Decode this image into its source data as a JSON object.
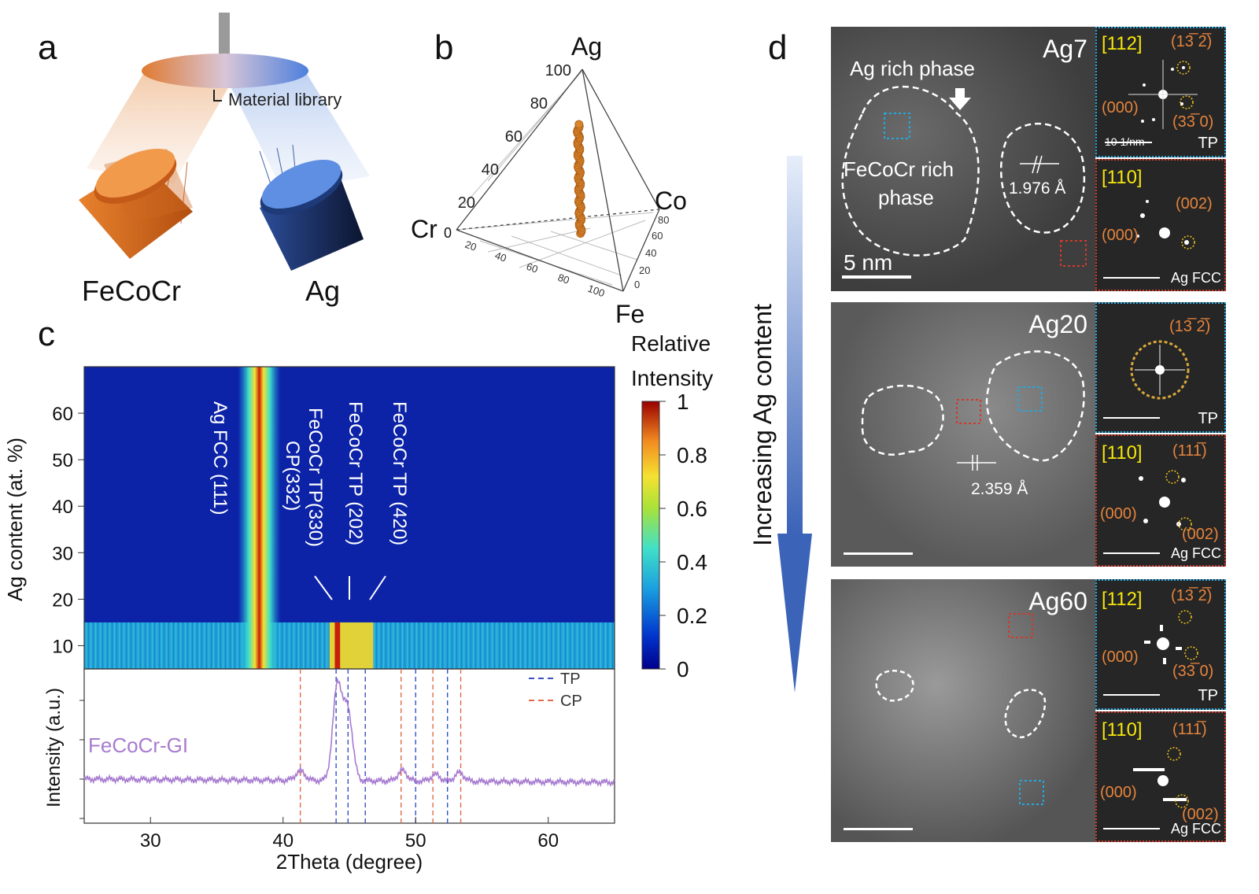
{
  "panels": {
    "a": {
      "letter": "a",
      "library_label": "Material library",
      "targets": [
        "FeCoCr",
        "Ag"
      ]
    },
    "b": {
      "letter": "b",
      "vertices": {
        "top": "Ag",
        "left": "Cr",
        "left_zero": "0",
        "right": "Co",
        "bottom": "Fe"
      },
      "ag_ticks": [
        "100",
        "80",
        "60",
        "40",
        "20"
      ],
      "cr_ticks": [
        "20",
        "40",
        "60",
        "80",
        "100"
      ],
      "fe_ticks": [
        "100",
        "80",
        "60",
        "40",
        "20",
        "0"
      ],
      "co_ticks": [
        "100",
        "80",
        "60",
        "40",
        "20"
      ]
    },
    "c": {
      "letter": "c",
      "colorbar": {
        "title_line1": "Relative",
        "title_line2": "Intensity",
        "ticks": [
          "1",
          "0.8",
          "0.6",
          "0.4",
          "0.2",
          "0"
        ]
      },
      "peak_labels": [
        "Ag FCC  (111)",
        "FeCoCr TP(330)",
        "CP(332)",
        "FeCoCr TP  (202)",
        "FeCoCr TP  (420)"
      ],
      "legend": [
        "TP",
        "CP"
      ],
      "trace_label": "FeCoCr-GI"
    },
    "d": {
      "letter": "d",
      "side_label": "Increasing Ag content",
      "rows": [
        {
          "sample": "Ag7",
          "ag_rich": "Ag rich phase",
          "fecocr_rich_1": "FeCoCr rich",
          "fecocr_rich_2": "phase",
          "d_spacing": "1.976 Å",
          "scale": "5 nm",
          "fft_top": {
            "zone": "[112]",
            "spots": [
              "(13̅ 2̅)",
              "(000)",
              "(33̅ 0)"
            ],
            "scale": "10 1/nm",
            "phase": "TP"
          },
          "fft_bottom": {
            "zone": "[110]",
            "spots": [
              "(002)",
              "(000)"
            ],
            "phase": "Ag FCC"
          }
        },
        {
          "sample": "Ag20",
          "d_spacing": "2.359 Å",
          "fft_top": {
            "spots": [
              "(13̅ 2̅)"
            ],
            "phase": "TP"
          },
          "fft_bottom": {
            "zone": "[110]",
            "spots": [
              "(111̅)",
              "(000)",
              "(002)"
            ],
            "phase": "Ag FCC"
          }
        },
        {
          "sample": "Ag60",
          "fft_top": {
            "zone": "[112]",
            "spots": [
              "(13̅ 2̅)",
              "(000)",
              "(33̅ 0)"
            ],
            "phase": "TP"
          },
          "fft_bottom": {
            "zone": "[110]",
            "spots": [
              "(111̅)",
              "(000)",
              "(002)"
            ],
            "phase": "Ag FCC"
          }
        }
      ]
    }
  },
  "colors": {
    "heat_bg": "#0c23a8",
    "heat_stripe": "#c81e0c",
    "trace": "#a77bd0",
    "tp_line": "#3a4fc0",
    "cp_line": "#e06a4a",
    "orange_label": "#e6843c",
    "yellow_label": "#f5e60a"
  },
  "chart_data": {
    "type": "heatmap",
    "xlabel": "2Theta (degree)",
    "ylabel_top": "Ag content (at. %)",
    "ylabel_bottom": "Intensity (a.u.)",
    "xlim": [
      25,
      65
    ],
    "ylim": [
      5,
      70
    ],
    "xticks": [
      30,
      40,
      50,
      60
    ],
    "yticks": [
      10,
      20,
      30,
      40,
      50,
      60
    ],
    "ag_fcc_peak_2theta": 38.2,
    "low_ag_band_ag_range": [
      5,
      15
    ],
    "tp_reference_lines": [
      44.0,
      44.9,
      46.2,
      50.0,
      52.4
    ],
    "cp_reference_lines": [
      41.3,
      48.9,
      51.3,
      53.4
    ],
    "trace_peaks": [
      {
        "x": 41.3,
        "h": 0.1
      },
      {
        "x": 44.1,
        "h": 1.0
      },
      {
        "x": 44.9,
        "h": 0.72
      },
      {
        "x": 49.0,
        "h": 0.11
      },
      {
        "x": 51.5,
        "h": 0.07
      },
      {
        "x": 53.3,
        "h": 0.09
      }
    ]
  }
}
